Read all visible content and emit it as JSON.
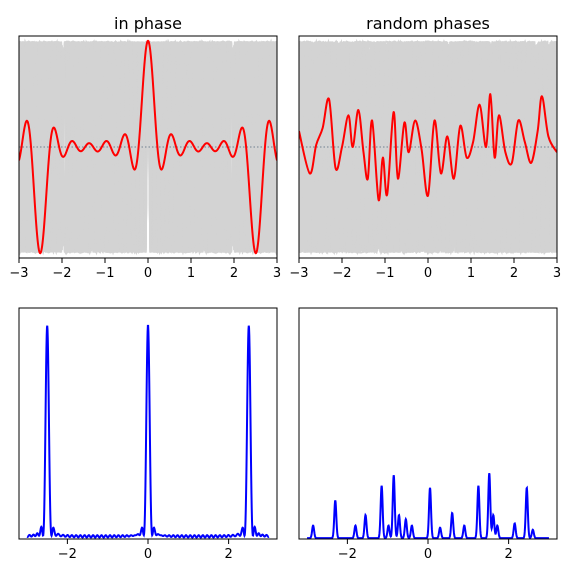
{
  "chart_data": [
    {
      "type": "line",
      "title": "in phase",
      "xlim": [
        -3,
        3
      ],
      "ylim": [
        -1.05,
        1.05
      ],
      "xticks": [
        -3,
        -2,
        -1,
        0,
        1,
        2,
        3
      ],
      "xtick_labels": [
        "−3",
        "−2",
        "−1",
        "0",
        "1",
        "2",
        "3"
      ],
      "grid": false,
      "series": [
        {
          "role": "components",
          "color": "#d3d3d3",
          "count": 40,
          "phase": "in phase",
          "envelope_amplitude": 1.0
        },
        {
          "role": "sum",
          "color": "#ff0000",
          "peaks_x": [
            -2.5,
            0,
            2.5
          ],
          "peak_values": [
            -1.0,
            1.0,
            -1.0
          ],
          "baseline_y": 0.0
        },
        {
          "role": "zero-line",
          "color": "#708090",
          "style": "dotted",
          "y": 0.0
        }
      ]
    },
    {
      "type": "line",
      "title": "random phases",
      "xlim": [
        -3,
        3
      ],
      "ylim": [
        -1.05,
        1.05
      ],
      "xticks": [
        -3,
        -2,
        -1,
        0,
        1,
        2,
        3
      ],
      "xtick_labels": [
        "−3",
        "−2",
        "−1",
        "0",
        "1",
        "2",
        "3"
      ],
      "grid": false,
      "series": [
        {
          "role": "components",
          "color": "#d3d3d3",
          "count": 40,
          "phase": "random",
          "envelope_amplitude": 1.0
        },
        {
          "role": "sum",
          "color": "#ff0000",
          "x": [
            -3.0,
            -2.75,
            -2.6,
            -2.45,
            -2.3,
            -2.15,
            -2.0,
            -1.85,
            -1.75,
            -1.62,
            -1.5,
            -1.4,
            -1.3,
            -1.15,
            -1.05,
            -0.95,
            -0.8,
            -0.7,
            -0.55,
            -0.45,
            -0.3,
            -0.15,
            0.0,
            0.15,
            0.3,
            0.45,
            0.6,
            0.75,
            0.9,
            1.05,
            1.2,
            1.35,
            1.45,
            1.55,
            1.65,
            1.8,
            1.95,
            2.1,
            2.25,
            2.4,
            2.55,
            2.65,
            2.8,
            3.0
          ],
          "y": [
            0.15,
            -0.25,
            0.02,
            0.18,
            0.45,
            -0.2,
            0.0,
            0.3,
            0.0,
            0.35,
            -0.05,
            -0.3,
            0.25,
            -0.5,
            -0.1,
            -0.45,
            0.33,
            -0.3,
            0.23,
            -0.05,
            0.25,
            -0.02,
            -0.46,
            0.25,
            -0.25,
            0.1,
            -0.3,
            0.2,
            -0.1,
            0.05,
            0.4,
            0.0,
            0.5,
            -0.1,
            0.3,
            -0.05,
            -0.15,
            0.25,
            0.05,
            -0.15,
            0.15,
            0.48,
            0.1,
            -0.05
          ]
        },
        {
          "role": "zero-line",
          "color": "#708090",
          "style": "dotted",
          "y": 0.0
        }
      ]
    },
    {
      "type": "line",
      "title": "",
      "xlim": [
        -3.2,
        3.2
      ],
      "ylim": [
        0,
        1.1
      ],
      "xticks": [
        -2,
        0,
        2
      ],
      "xtick_labels": [
        "−2",
        "0",
        "2"
      ],
      "grid": false,
      "series": [
        {
          "role": "intensity",
          "color": "#0000ff",
          "peaks_x": [
            -2.5,
            0,
            2.5
          ],
          "peak_values": [
            1.0,
            1.0,
            1.0
          ]
        }
      ]
    },
    {
      "type": "line",
      "title": "",
      "xlim": [
        -3.2,
        3.2
      ],
      "ylim": [
        0,
        1.1
      ],
      "xticks": [
        -2,
        0,
        2
      ],
      "xtick_labels": [
        "−2",
        "0",
        "2"
      ],
      "grid": false,
      "series": [
        {
          "role": "intensity",
          "color": "#0000ff",
          "peaks": [
            {
              "x": -2.85,
              "y": 0.06
            },
            {
              "x": -2.3,
              "y": 0.18
            },
            {
              "x": -1.8,
              "y": 0.06
            },
            {
              "x": -1.55,
              "y": 0.11
            },
            {
              "x": -1.15,
              "y": 0.25
            },
            {
              "x": -0.98,
              "y": 0.06
            },
            {
              "x": -0.85,
              "y": 0.3
            },
            {
              "x": -0.72,
              "y": 0.11
            },
            {
              "x": -0.55,
              "y": 0.09
            },
            {
              "x": -0.4,
              "y": 0.06
            },
            {
              "x": 0.05,
              "y": 0.24
            },
            {
              "x": 0.3,
              "y": 0.05
            },
            {
              "x": 0.6,
              "y": 0.12
            },
            {
              "x": 0.9,
              "y": 0.06
            },
            {
              "x": 1.25,
              "y": 0.25
            },
            {
              "x": 1.52,
              "y": 0.31
            },
            {
              "x": 1.62,
              "y": 0.11
            },
            {
              "x": 1.72,
              "y": 0.06
            },
            {
              "x": 2.15,
              "y": 0.07
            },
            {
              "x": 2.45,
              "y": 0.24
            },
            {
              "x": 2.6,
              "y": 0.04
            }
          ]
        }
      ]
    }
  ]
}
